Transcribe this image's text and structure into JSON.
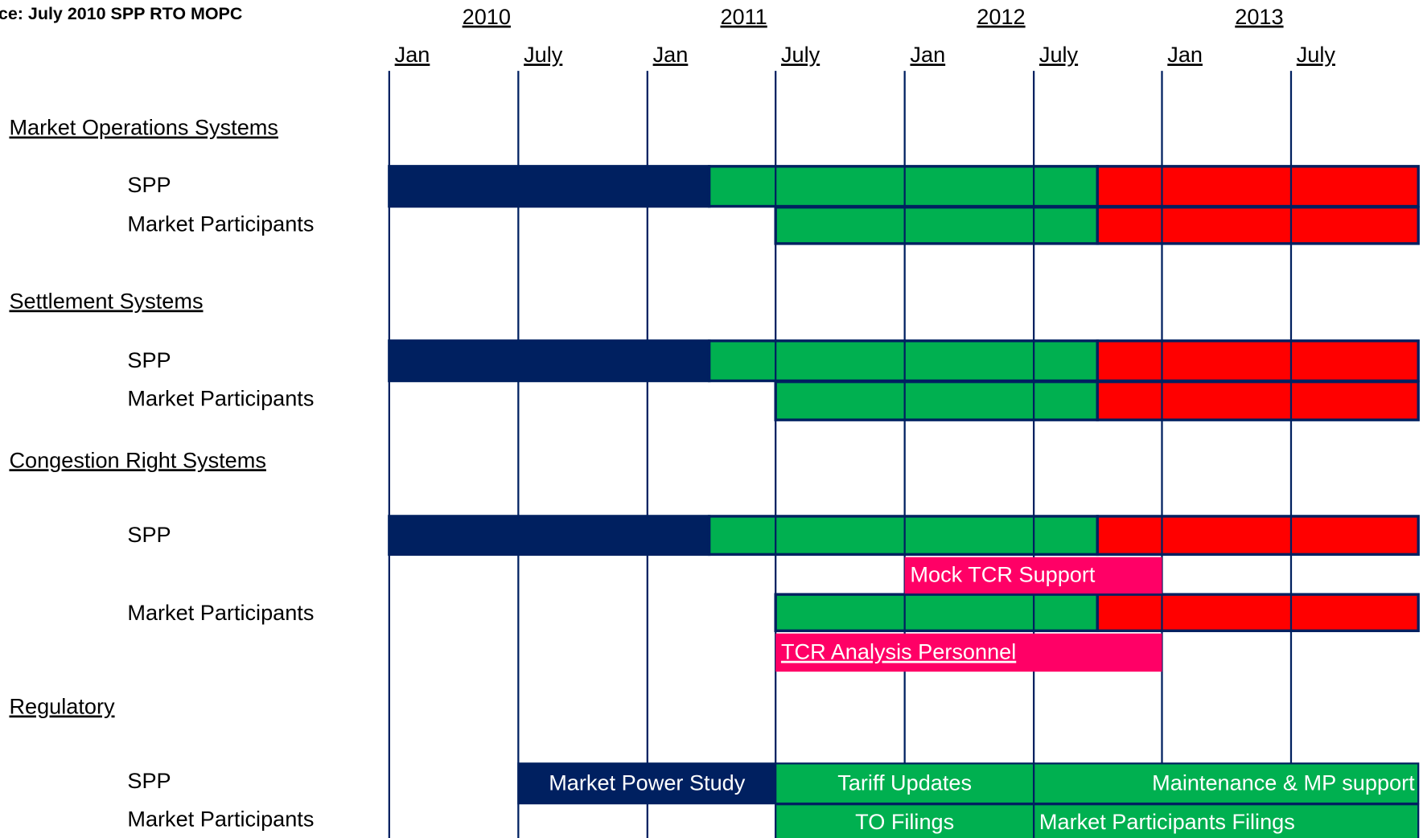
{
  "header": {
    "title": "ce:  July 2010 SPP RTO MOPC",
    "years": [
      "2010",
      "2011",
      "2012",
      "2013"
    ],
    "months": [
      "Jan",
      "July",
      "Jan",
      "July",
      "Jan",
      "July",
      "Jan",
      "July"
    ]
  },
  "sections": [
    {
      "title": "Market Operations Systems",
      "rows": [
        "SPP",
        "Market Participants"
      ]
    },
    {
      "title": "Settlement Systems",
      "rows": [
        "SPP",
        "Market Participants"
      ]
    },
    {
      "title": "Congestion Right Systems",
      "rows": [
        "SPP",
        "Market Participants"
      ]
    },
    {
      "title": "Regulatory",
      "rows": [
        "SPP",
        "Market Participants"
      ]
    }
  ],
  "bars": [
    "Mock TCR Support",
    "TCR Analysis Personnel",
    "Market Power Study",
    "Tariff Updates",
    "Maintenance & MP support",
    "TO Filings",
    "Market Participants Filings"
  ]
}
